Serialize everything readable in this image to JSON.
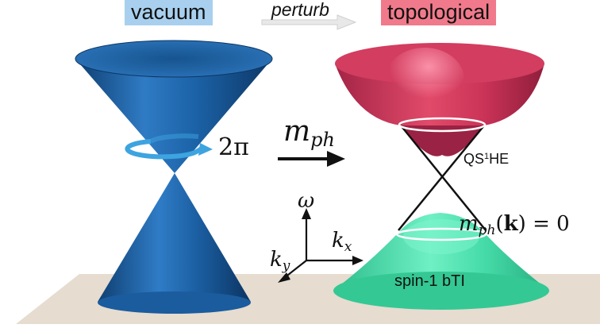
{
  "labels": {
    "vacuum": "vacuum",
    "perturb": "perturb",
    "topological": "topological",
    "mph": "m",
    "mph_sub": "ph",
    "two_pi": "2π",
    "omega": "ω",
    "kx": "k",
    "kx_sub": "x",
    "ky": "k",
    "ky_sub": "y",
    "mk_m": "m",
    "mk_sub": "ph",
    "mk_open": "(",
    "mk_k": "k",
    "mk_rest": ") = 0",
    "qs_pre": "QS",
    "qs_sup": "1",
    "qs_post": "HE",
    "bti": "spin-1 bTI"
  },
  "colors": {
    "vacuum_highlight": "#a8d0ee",
    "topological_highlight": "#f07a8b",
    "blue_cone": "#1a5fa0",
    "red_cone": "#d8345a",
    "green_cone": "#3fd6a4",
    "floor": "#e6dccf",
    "rotation_arrow": "#3da4e0"
  },
  "icons": {
    "perturb_arrow": "right-arrow-icon",
    "mph_arrow": "right-arrow-icon",
    "rotation": "circular-arrow-icon"
  }
}
